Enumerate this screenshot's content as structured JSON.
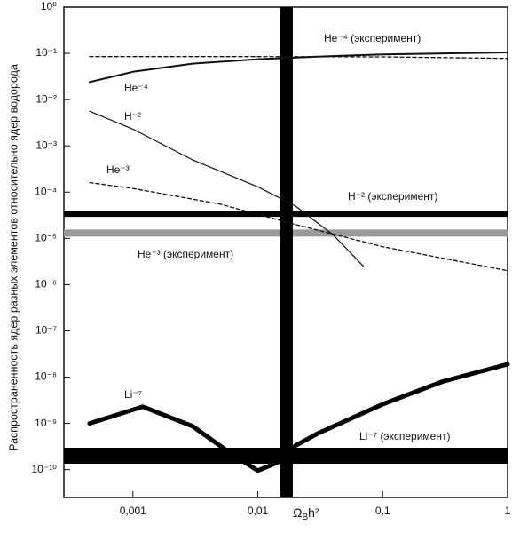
{
  "chart_data": {
    "type": "line",
    "xlog": true,
    "ylog": true,
    "xlim": [
      0.00028,
      1
    ],
    "ylim": [
      2.5e-11,
      1
    ],
    "xticks": [
      {
        "value": 0.001,
        "label": "0,001"
      },
      {
        "value": 0.01,
        "label": "0,01"
      },
      {
        "value": 0.1,
        "label": "0,1"
      },
      1
    ],
    "yticks": [
      {
        "value": 1,
        "label": "10⁰"
      },
      {
        "value": 0.1,
        "label": "10⁻¹"
      },
      {
        "value": 0.01,
        "label": "10⁻²"
      },
      {
        "value": 0.001,
        "label": "10⁻³"
      },
      {
        "value": 0.0001,
        "label": "10⁻⁴"
      },
      {
        "value": 1e-05,
        "label": "10⁻⁵"
      },
      {
        "value": 1e-06,
        "label": "10⁻⁶"
      },
      {
        "value": 1e-07,
        "label": "10⁻⁷"
      },
      {
        "value": 1e-08,
        "label": "10⁻⁸"
      },
      {
        "value": 1e-09,
        "label": "10⁻⁹"
      },
      {
        "value": 1e-10,
        "label": "10⁻¹⁰"
      }
    ],
    "ylabel": "Распространенность ядер разных элементов относительно ядер водорода",
    "xlabel": {
      "symbol": "Ω",
      "sub": "B",
      "rest": "h²"
    },
    "series": [
      {
        "color": "#111",
        "style": "solid",
        "x": [
          0.00045,
          0.001,
          0.003,
          0.01,
          0.03,
          0.1,
          1
        ],
        "values": [
          0.024,
          0.04,
          0.06,
          0.075,
          0.085,
          0.095,
          0.105
        ]
      },
      {
        "color": "#111",
        "style": "dashed",
        "x": [
          0.00045,
          0.01,
          0.1,
          1
        ],
        "values": [
          0.085,
          0.085,
          0.084,
          0.078
        ]
      },
      {
        "color": "#111",
        "style": "thin",
        "x": [
          0.00045,
          0.001,
          0.003,
          0.01,
          0.02,
          0.04,
          0.07
        ],
        "values": [
          0.0056,
          0.0023,
          0.0005,
          0.00013,
          5e-05,
          1.2e-05,
          2.5e-06
        ]
      },
      {
        "color": "#111",
        "style": "dashed",
        "x": [
          0.00045,
          0.001,
          0.005,
          0.02,
          0.1,
          1
        ],
        "values": [
          0.00016,
          0.00012,
          5.5e-05,
          2e-05,
          6.6e-06,
          2e-06
        ]
      },
      {
        "color": "#000",
        "style": "thick",
        "x": [
          0.00045,
          0.0012,
          0.003,
          0.006,
          0.01,
          0.015,
          0.02,
          0.03,
          0.1,
          0.3,
          1
        ],
        "values": [
          1e-09,
          2.3e-09,
          8.7e-10,
          2.3e-10,
          9.5e-11,
          1.5e-10,
          3.3e-10,
          6e-10,
          2.6e-09,
          8e-09,
          1.9e-08
        ]
      }
    ],
    "hbands": [
      {
        "value": 3.4e-05,
        "color": "#000"
      },
      {
        "value": 1.3e-05,
        "color": "#999"
      },
      {
        "value": 2e-10,
        "color": "#000"
      }
    ],
    "vbands": [
      {
        "value": 0.017,
        "color": "#000"
      }
    ],
    "annotations": [
      "He⁻⁴ (эксперимент)",
      "He⁻⁴",
      "H⁻²",
      "He⁻³",
      "H⁻² (эксперимент)",
      "He⁻³ (эксперимент)",
      "Li⁻⁷",
      "Li⁻⁷ (эксперимент)"
    ]
  }
}
